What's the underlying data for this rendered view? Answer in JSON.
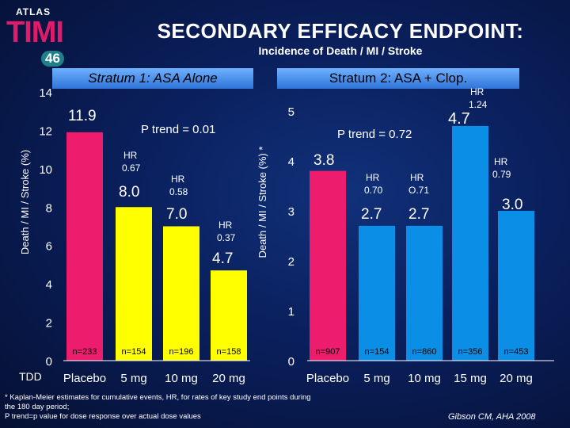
{
  "logo": {
    "top_text": "ATLAS",
    "main_text": "TIMI",
    "number": "46"
  },
  "title": "SECONDARY EFFICACY ENDPOINT:",
  "subtitle": "Incidence of Death / MI / Stroke",
  "stratum1_label": "Stratum 1: ASA Alone",
  "stratum2_label": "Stratum 2: ASA + Clop.",
  "tdd_label": "TDD",
  "footnote_lines": [
    "* Kaplan-Meier estimates  for cumulative events, HR, for rates of key study end points during",
    "the 180 day period;",
    "P trend=p value for dose response over actual dose values"
  ],
  "citation": "Gibson CM, AHA 2008",
  "colors": {
    "placebo": "#ee1c6c",
    "yellow": "#ffff00",
    "blue": "#0b8ee6"
  },
  "chart_data": [
    {
      "type": "bar",
      "name": "Stratum 1: ASA Alone",
      "categories": [
        "Placebo",
        "5 mg",
        "10 mg",
        "20 mg"
      ],
      "values": [
        11.9,
        8.0,
        7.0,
        4.7
      ],
      "value_labels": [
        "11.9",
        "8.0",
        "7.0",
        "4.7"
      ],
      "hr_labels": [
        "",
        "HR 0.67",
        "HR 0.58",
        "HR 0.37"
      ],
      "n_labels": [
        "n=233",
        "n=154",
        "n=196",
        "n=158"
      ],
      "p_trend": "P trend = 0.01",
      "ylabel": "Death / MI / Stroke  (%)",
      "ylim": [
        0,
        14
      ],
      "yticks": [
        "0",
        "2",
        "4",
        "6",
        "8",
        "10",
        "12",
        "14"
      ],
      "bar_colors": [
        "#ee1c6c",
        "#ffff00",
        "#ffff00",
        "#ffff00"
      ]
    },
    {
      "type": "bar",
      "name": "Stratum 2: ASA + Clop.",
      "categories": [
        "Placebo",
        "5 mg",
        "10 mg",
        "15 mg",
        "20 mg"
      ],
      "values": [
        3.8,
        2.7,
        2.7,
        4.7,
        3.0
      ],
      "value_labels": [
        "3.8",
        "2.7",
        "2.7",
        "4.7",
        "3.0"
      ],
      "hr_labels": [
        "",
        "HR 0.70",
        "HR O.71",
        "HR 1.24",
        "HR 0.79"
      ],
      "n_labels": [
        "n=907",
        "n=154",
        "n=860",
        "n=356",
        "n=453"
      ],
      "p_trend": "P trend = 0.72",
      "ylabel": "Death / MI / Stroke  (%) *",
      "ylim": [
        0,
        5
      ],
      "yticks": [
        "0",
        "1",
        "2",
        "3",
        "4",
        "5"
      ],
      "bar_colors": [
        "#ee1c6c",
        "#0b8ee6",
        "#0b8ee6",
        "#0b8ee6",
        "#0b8ee6"
      ]
    }
  ]
}
